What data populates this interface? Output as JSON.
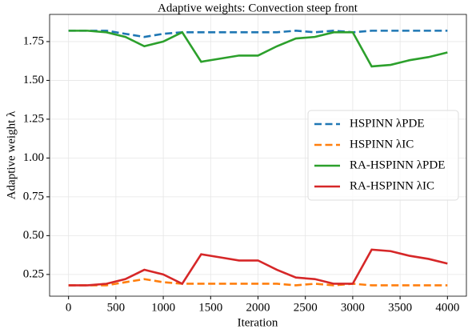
{
  "chart_data": {
    "type": "line",
    "title": "Adaptive weights: Convection steep front",
    "xlabel": "Iteration",
    "ylabel": "Adaptive weight λ",
    "x": [
      0,
      200,
      400,
      600,
      800,
      1000,
      1200,
      1400,
      1600,
      1800,
      2000,
      2200,
      2400,
      2600,
      2800,
      3000,
      3200,
      3400,
      3600,
      3800,
      4000
    ],
    "series": [
      {
        "name": "HSPINN λPDE",
        "color": "#1f77b4",
        "linestyle": "dashed",
        "values": [
          1.82,
          1.82,
          1.82,
          1.8,
          1.78,
          1.8,
          1.81,
          1.81,
          1.81,
          1.81,
          1.81,
          1.81,
          1.82,
          1.81,
          1.82,
          1.81,
          1.82,
          1.82,
          1.82,
          1.82,
          1.82
        ]
      },
      {
        "name": "HSPINN λIC",
        "color": "#ff7f0e",
        "linestyle": "dashed",
        "values": [
          0.18,
          0.18,
          0.18,
          0.2,
          0.22,
          0.2,
          0.19,
          0.19,
          0.19,
          0.19,
          0.19,
          0.19,
          0.18,
          0.19,
          0.18,
          0.19,
          0.18,
          0.18,
          0.18,
          0.18,
          0.18
        ]
      },
      {
        "name": "RA-HSPINN λPDE",
        "color": "#2ca02c",
        "linestyle": "solid",
        "values": [
          1.82,
          1.82,
          1.81,
          1.78,
          1.72,
          1.75,
          1.81,
          1.62,
          1.64,
          1.66,
          1.66,
          1.72,
          1.77,
          1.78,
          1.81,
          1.81,
          1.59,
          1.6,
          1.63,
          1.65,
          1.68
        ]
      },
      {
        "name": "RA-HSPINN λIC",
        "color": "#d62728",
        "linestyle": "solid",
        "values": [
          0.18,
          0.18,
          0.19,
          0.22,
          0.28,
          0.25,
          0.19,
          0.38,
          0.36,
          0.34,
          0.34,
          0.28,
          0.23,
          0.22,
          0.19,
          0.19,
          0.41,
          0.4,
          0.37,
          0.35,
          0.32
        ]
      }
    ],
    "xlim": [
      -200,
      4200
    ],
    "xticks": [
      0,
      500,
      1000,
      1500,
      2000,
      2500,
      3000,
      3500,
      4000
    ],
    "ylim": [
      0.11,
      1.925
    ],
    "yticks": [
      0.25,
      {
        "value": 0.5,
        "label": "0.50"
      },
      0.75,
      {
        "value": 1,
        "label": "1.00"
      },
      1.25,
      {
        "value": 1.5,
        "label": "1.50"
      },
      1.75
    ],
    "grid": true,
    "legend": "center right"
  }
}
